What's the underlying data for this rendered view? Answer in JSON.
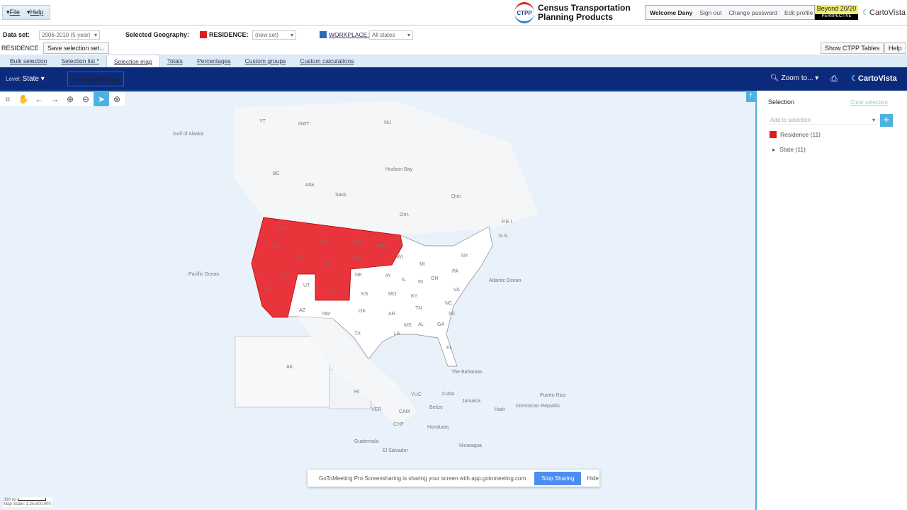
{
  "menu": {
    "file": "File",
    "help": "Help"
  },
  "brand": {
    "logo_text": "CTPP",
    "title_line1": "Census Transportation",
    "title_line2": "Planning Products",
    "beyond_line1": "Beyond 20/20",
    "beyond_line2": "PERSPECTIVE",
    "cartovista": "CartoVista"
  },
  "user": {
    "welcome": "Welcome Dany",
    "sign_out": "Sign out",
    "change_password": "Change password",
    "edit_profile": "Edit profile"
  },
  "dataset": {
    "label": "Data set:",
    "value": "2006-2010 (5-year)"
  },
  "geography": {
    "label": "Selected Geography:",
    "residence_label": "RESIDENCE:",
    "residence_value": "(new set)",
    "workplace_label": "WORKPLACE:",
    "workplace_value": "All states",
    "residence_color": "#e01b1b",
    "workplace_color": "#2a6bb8"
  },
  "residence_row": {
    "label": "RESIDENCE",
    "save_button": "Save selection set..."
  },
  "right_buttons": {
    "show_tables": "Show CTPP Tables",
    "help": "Help"
  },
  "tabs": [
    {
      "label": "Bulk selection"
    },
    {
      "label": "Selection list *"
    },
    {
      "label": "Selection map",
      "active": true
    },
    {
      "label": "Totals"
    },
    {
      "label": "Percentages"
    },
    {
      "label": "Custom groups"
    },
    {
      "label": "Custom calculations"
    }
  ],
  "mapbar": {
    "level_label": "Level:",
    "level_value": "State",
    "available_flows": "Available flows",
    "zoom_to": "Zoom to...",
    "cartovista": "CartoVista"
  },
  "map_tools": [
    "extent-icon",
    "pan-hand-icon",
    "back-arrow-icon",
    "forward-arrow-icon",
    "zoom-in-icon",
    "zoom-out-icon",
    "select-pointer-icon",
    "clear-selection-icon"
  ],
  "map_labels": [
    "YT",
    "NWT",
    "NU",
    "BC",
    "Alta.",
    "Sask.",
    "Hudson Bay",
    "Que.",
    "Ont.",
    "P.E.I.",
    "N.S.",
    "WA",
    "OR",
    "MT",
    "ND",
    "ID",
    "WY",
    "SD",
    "MN",
    "NE",
    "WI",
    "MI",
    "NY",
    "CA",
    "NV",
    "UT",
    "CO",
    "KS",
    "IA",
    "IL",
    "IN",
    "OH",
    "PA",
    "MO",
    "KY",
    "VA",
    "AZ",
    "NM",
    "OK",
    "AR",
    "TN",
    "NC",
    "MS",
    "AL",
    "GA",
    "SC",
    "TX",
    "LA",
    "FL",
    "AK",
    "HI",
    "Pacific Ocean",
    "Atlantic Ocean",
    "The Bahamas",
    "Cuba",
    "YUC",
    "Jamaica",
    "Haiti",
    "Dominican Republic",
    "Puerto Rico",
    "Belize",
    "Honduras",
    "Guatemala",
    "El Salvador",
    "Nicaragua",
    "CAM",
    "VER",
    "CHP",
    "Gulf of Alaska"
  ],
  "scale": {
    "distance": "390 mi",
    "map_scale": "Map Scale: 1:25,600,000"
  },
  "selection_panel": {
    "title": "Selection",
    "clear": "Clear selection",
    "add_placeholder": "Add to selection",
    "items": [
      {
        "label": "Residence (11)",
        "color": "#e01b1b"
      },
      {
        "label": "State (11)"
      }
    ]
  },
  "share_bar": {
    "message": "GoToMeeting Pro Screensharing is sharing your screen with app.gotomeeting.com",
    "stop": "Stop Sharing",
    "hide": "Hide"
  },
  "selected_fill": "#e8343a"
}
